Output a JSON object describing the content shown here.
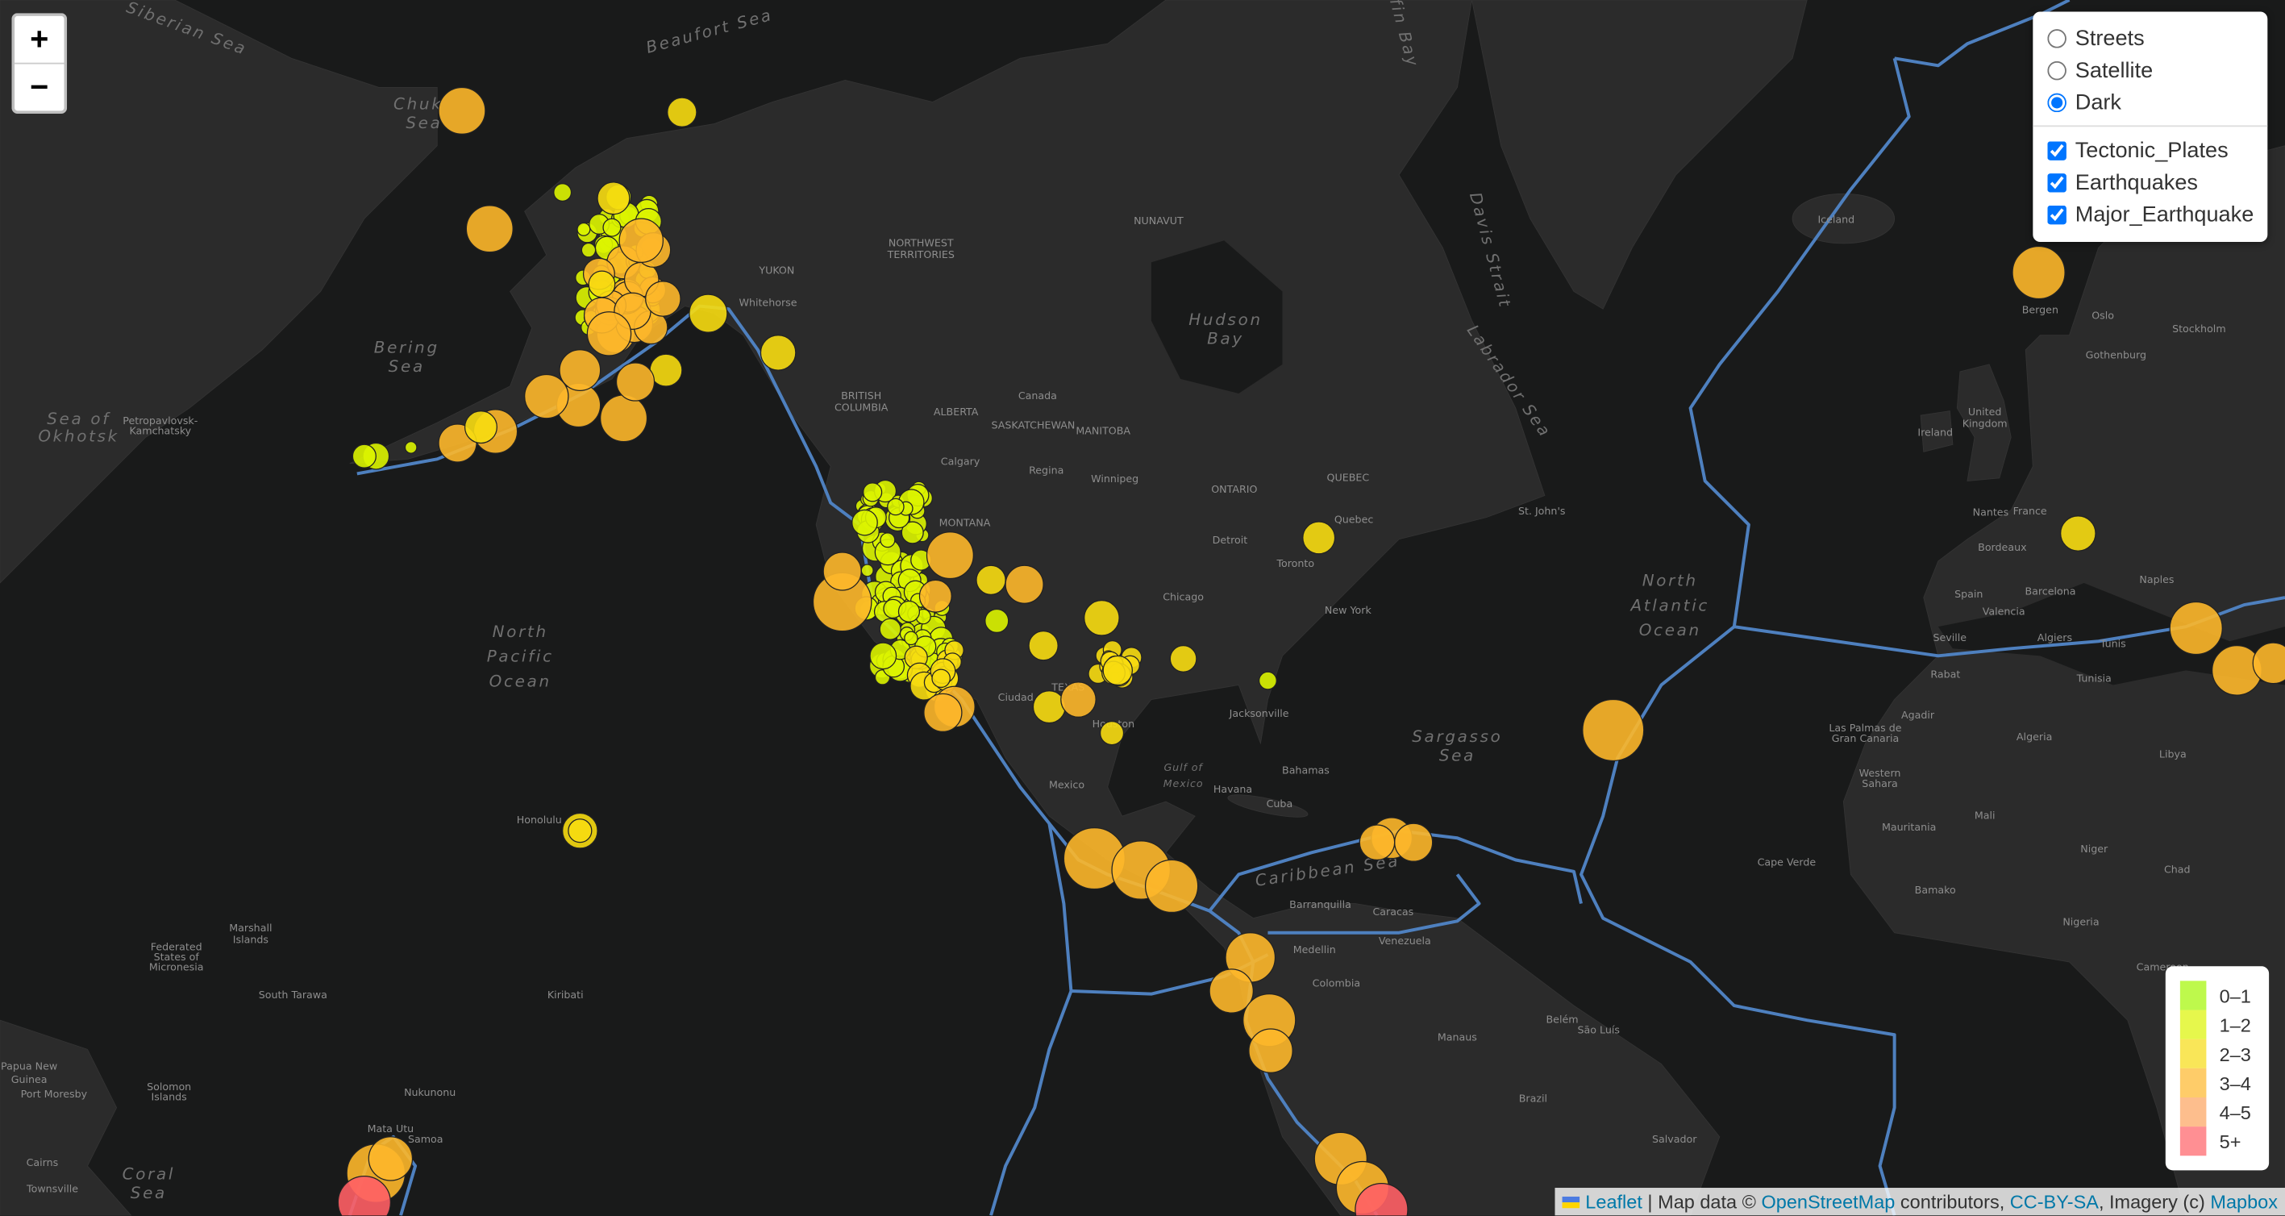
{
  "zoom_control": {
    "zoom_in": "+",
    "zoom_out": "−"
  },
  "layer_control": {
    "base_layers": [
      {
        "label": "Streets",
        "selected": false
      },
      {
        "label": "Satellite",
        "selected": false
      },
      {
        "label": "Dark",
        "selected": true
      }
    ],
    "overlays": [
      {
        "label": "Tectonic_Plates",
        "checked": true
      },
      {
        "label": "Earthquakes",
        "checked": true
      },
      {
        "label": "Major_Earthquake",
        "checked": true
      }
    ]
  },
  "legend": {
    "items": [
      {
        "label": "0–1",
        "color": "#a3f600"
      },
      {
        "label": "1–2",
        "color": "#dcf400"
      },
      {
        "label": "2–3",
        "color": "#f7db11"
      },
      {
        "label": "3–4",
        "color": "#fdb72a"
      },
      {
        "label": "4–5",
        "color": "#fca35d"
      },
      {
        "label": "5+",
        "color": "#ff5f65"
      }
    ]
  },
  "attribution": [
    "Leaflet",
    "|",
    "Map data ©",
    "OpenStreetMap",
    "contributors,",
    "CC-BY-SA",
    ", Imagery (c)",
    "Mapbox"
  ],
  "map_labels": {
    "water": [
      "Siberian Sea",
      "Beaufort Sea",
      "Chuk",
      "Sea",
      "Bering",
      "Sea",
      "Sea of",
      "Okhotsk",
      "North",
      "Pacific",
      "Ocean",
      "Hudson",
      "Bay",
      "Davis Strait",
      "Labrador Sea",
      "Baffin Bay",
      "North",
      "Atlantic",
      "Ocean",
      "Sargasso",
      "Sea",
      "Gulf of",
      "Mexico",
      "Caribbean Sea",
      "Coral",
      "Sea"
    ],
    "places": [
      "Canada",
      "Mexico",
      "Cuba",
      "Venezuela",
      "Colombia",
      "Brazil",
      "Iceland",
      "Ireland",
      "United",
      "Kingdom",
      "France",
      "Spain",
      "Tunisia",
      "Libya",
      "Mauritania",
      "Mali",
      "Niger",
      "Chad",
      "Nigeria",
      "Cameroon",
      "Western",
      "Sahara",
      "Algeria",
      "Kiribati",
      "Samoa",
      "Whitehorse",
      "Calgary",
      "Regina",
      "Winnipeg",
      "Toronto",
      "Quebec",
      "St. John's",
      "New York",
      "Chicago",
      "Detroit",
      "Houston",
      "Jacksonville",
      "Havana",
      "Honolulu",
      "Petropavlovsk-",
      "Kamchatsky",
      "Barranquilla",
      "Caracas",
      "Medellin",
      "Manaus",
      "Belém",
      "São Luís",
      "Salvador",
      "Bergen",
      "Oslo",
      "Stockholm",
      "Gothenburg",
      "Nantes",
      "Bordeaux",
      "Barcelona",
      "Valencia",
      "Algiers",
      "Tunis",
      "Naples",
      "Seville",
      "Rabat",
      "Agadir",
      "Bamako",
      "Port Moresby",
      "Nukunonu",
      "South Tarawa",
      "Mata Utu",
      "Cairns",
      "Townsville",
      "Papua New",
      "Guinea",
      "Marshall",
      "Islands",
      "Federated",
      "States of",
      "Micronesia",
      "Solomon",
      "Islands",
      "NUNAVUT",
      "YUKON",
      "NORTHWEST",
      "TERRITORIES",
      "BRITISH",
      "COLUMBIA",
      "ALBERTA",
      "SASKATCHEWAN",
      "MANITOBA",
      "ONTARIO",
      "QUEBEC",
      "MONTANA",
      "TEXAS",
      "Ciudad",
      "Bahamas",
      "Las Palmas de",
      "Gran Canaria",
      "Cape Verde"
    ]
  }
}
